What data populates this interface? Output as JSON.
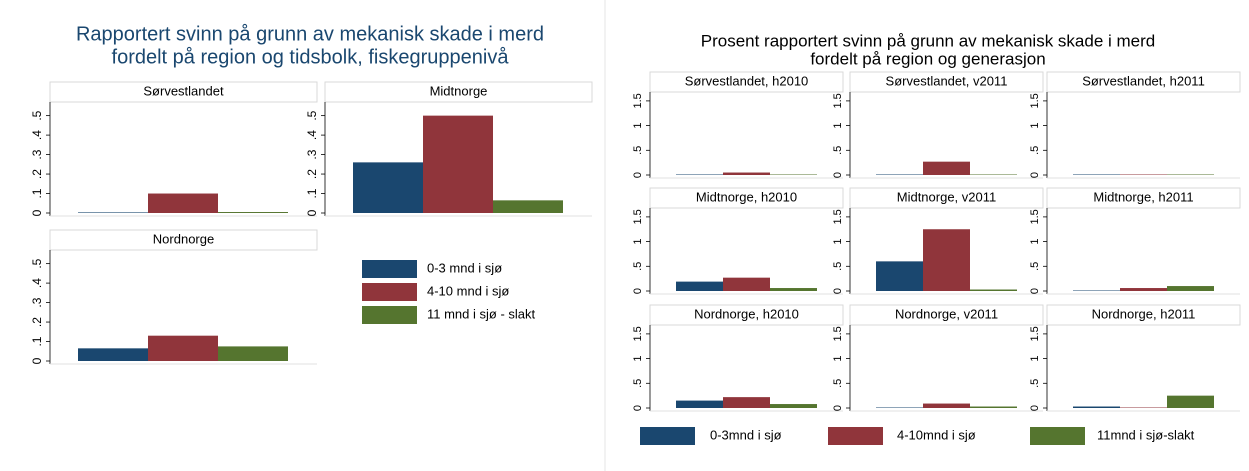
{
  "chart_data": [
    {
      "type": "bar",
      "title": [
        "Rapportert svinn på grunn av mekanisk skade i merd",
        "fordelt på region og tidsbolk, fiskegruppenivå"
      ],
      "ylim": [
        0,
        0.57
      ],
      "yticks": [
        0,
        {
          "value": 0.1,
          "label": ".1"
        },
        {
          "value": 0.2,
          "label": ".2"
        },
        {
          "value": 0.3,
          "label": ".3"
        },
        {
          "value": 0.4,
          "label": ".4"
        },
        {
          "value": 0.5,
          "label": ".5"
        }
      ],
      "grid": false,
      "series": [
        {
          "name": "0-3 mnd i sjø",
          "color": "#1a476f"
        },
        {
          "name": "4-10 mnd i sjø",
          "color": "#90353b"
        },
        {
          "name": "11 mnd i sjø - slakt",
          "color": "#55752f"
        }
      ],
      "panels": [
        {
          "title": "Sørvestlandet",
          "values": [
            0.003,
            0.1,
            0.005
          ]
        },
        {
          "title": "Midtnorge",
          "values": [
            0.26,
            0.5,
            0.065
          ]
        },
        {
          "title": "Nordnorge",
          "values": [
            0.065,
            0.13,
            0.075
          ]
        }
      ]
    },
    {
      "type": "bar",
      "title": [
        "Prosent rapportert svinn på grunn av mekanisk skade i merd",
        "fordelt på region og generasjon"
      ],
      "ylim": [
        0,
        1.68
      ],
      "yticks": [
        0,
        {
          "value": 0.5,
          "label": ".5"
        },
        1,
        1.5
      ],
      "grid": false,
      "series": [
        {
          "name": "0-3mnd i sjø",
          "color": "#1a476f"
        },
        {
          "name": "4-10mnd i sjø",
          "color": "#90353b"
        },
        {
          "name": "11mnd i sjø-slakt",
          "color": "#55752f"
        }
      ],
      "panels": [
        {
          "title": "Sørvestlandet, h2010",
          "values": [
            0.01,
            0.05,
            0.01
          ]
        },
        {
          "title": "Sørvestlandet, v2011",
          "values": [
            0.01,
            0.27,
            0.01
          ]
        },
        {
          "title": "Sørvestlandet, h2011",
          "values": [
            0.01,
            0.01,
            0.01
          ]
        },
        {
          "title": "Midtnorge, h2010",
          "values": [
            0.19,
            0.27,
            0.06
          ]
        },
        {
          "title": "Midtnorge, v2011",
          "values": [
            0.6,
            1.25,
            0.03
          ]
        },
        {
          "title": "Midtnorge, h2011",
          "values": [
            0.01,
            0.06,
            0.1
          ]
        },
        {
          "title": "Nordnorge, h2010",
          "values": [
            0.15,
            0.22,
            0.08
          ]
        },
        {
          "title": "Nordnorge, v2011",
          "values": [
            0.01,
            0.09,
            0.03
          ]
        },
        {
          "title": "Nordnorge, h2011",
          "values": [
            0.03,
            0.01,
            0.25
          ]
        }
      ]
    }
  ]
}
